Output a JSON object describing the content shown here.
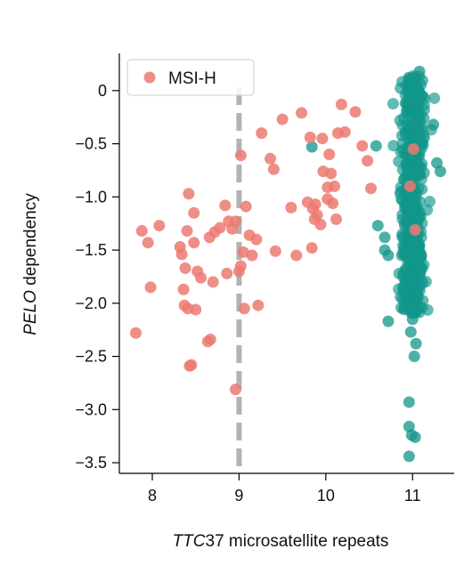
{
  "chart_data": {
    "type": "scatter",
    "title": "",
    "xlabel_italic": "TTC",
    "xlabel_rest": "37 microsatellite repeats",
    "ylabel_italic": "PELO",
    "ylabel_rest": " dependency",
    "xlim": [
      7.62,
      11.48
    ],
    "ylim": [
      -3.6,
      0.35
    ],
    "xticks": [
      8,
      9,
      10,
      11
    ],
    "xtick_labels": [
      "8",
      "9",
      "10",
      "11"
    ],
    "yticks": [
      0,
      -0.5,
      -1.0,
      -1.5,
      -2.0,
      -2.5,
      -3.0,
      -3.5
    ],
    "ytick_labels": [
      "0",
      "−0.5",
      "−1.0",
      "−1.5",
      "−2.0",
      "−2.5",
      "−3.0",
      "−3.5"
    ],
    "reference_line": {
      "x": 9,
      "style": "dashed",
      "color": "#b3b3b3"
    },
    "legend": {
      "entries": [
        "MSI-H"
      ],
      "position": "top-left"
    },
    "colors": {
      "msi": "#ec7a71",
      "mss": "#11968a"
    },
    "series": [
      {
        "name": "MSI-H",
        "color": "#ec7a71",
        "points": [
          [
            7.81,
            -2.28
          ],
          [
            7.88,
            -1.32
          ],
          [
            7.95,
            -1.43
          ],
          [
            7.98,
            -1.85
          ],
          [
            8.08,
            -1.27
          ],
          [
            8.32,
            -1.47
          ],
          [
            8.34,
            -1.54
          ],
          [
            8.36,
            -1.87
          ],
          [
            8.37,
            -2.02
          ],
          [
            8.38,
            -1.67
          ],
          [
            8.4,
            -1.32
          ],
          [
            8.41,
            -2.05
          ],
          [
            8.42,
            -0.97
          ],
          [
            8.43,
            -2.59
          ],
          [
            8.45,
            -2.58
          ],
          [
            8.48,
            -1.15
          ],
          [
            8.48,
            -1.43
          ],
          [
            8.5,
            -2.06
          ],
          [
            8.52,
            -1.7
          ],
          [
            8.56,
            -1.76
          ],
          [
            8.64,
            -2.36
          ],
          [
            8.66,
            -1.38
          ],
          [
            8.67,
            -2.34
          ],
          [
            8.7,
            -1.8
          ],
          [
            8.72,
            -1.33
          ],
          [
            8.78,
            -1.29
          ],
          [
            8.84,
            -1.08
          ],
          [
            8.86,
            -1.72
          ],
          [
            8.88,
            -1.23
          ],
          [
            8.92,
            -1.3
          ],
          [
            8.96,
            -1.23
          ],
          [
            8.96,
            -2.81
          ],
          [
            9.02,
            -0.61
          ],
          [
            9.0,
            -1.7
          ],
          [
            9.02,
            -1.65
          ],
          [
            9.05,
            -1.52
          ],
          [
            9.06,
            -2.05
          ],
          [
            9.08,
            -1.09
          ],
          [
            9.12,
            -1.36
          ],
          [
            9.15,
            -1.55
          ],
          [
            9.2,
            -1.4
          ],
          [
            9.22,
            -2.02
          ],
          [
            9.26,
            -0.4
          ],
          [
            9.36,
            -0.64
          ],
          [
            9.4,
            -0.74
          ],
          [
            9.42,
            -1.51
          ],
          [
            9.5,
            -0.27
          ],
          [
            9.6,
            -1.1
          ],
          [
            9.66,
            -1.55
          ],
          [
            9.72,
            -0.21
          ],
          [
            9.79,
            -1.05
          ],
          [
            9.82,
            -0.44
          ],
          [
            9.84,
            -1.48
          ],
          [
            9.85,
            -1.11
          ],
          [
            9.87,
            -1.21
          ],
          [
            9.88,
            -1.07
          ],
          [
            9.9,
            -1.17
          ],
          [
            9.94,
            -1.26
          ],
          [
            9.96,
            -0.45
          ],
          [
            9.97,
            -0.76
          ],
          [
            10.02,
            -0.91
          ],
          [
            10.02,
            -1.02
          ],
          [
            10.04,
            -0.6
          ],
          [
            10.06,
            -0.78
          ],
          [
            10.08,
            -1.06
          ],
          [
            10.1,
            -0.9
          ],
          [
            10.12,
            -1.21
          ],
          [
            10.14,
            -0.4
          ],
          [
            10.18,
            -0.13
          ],
          [
            10.22,
            -0.39
          ],
          [
            10.34,
            -0.2
          ],
          [
            10.42,
            -0.52
          ],
          [
            10.48,
            -0.66
          ],
          [
            10.52,
            -0.92
          ],
          [
            11.01,
            -0.55
          ],
          [
            10.97,
            -0.9
          ],
          [
            11.03,
            -1.31
          ]
        ]
      },
      {
        "name": "",
        "color": "#11968a",
        "points": [
          [
            9.84,
            -0.53
          ],
          [
            10.58,
            -0.52
          ],
          [
            10.6,
            -1.27
          ],
          [
            10.68,
            -1.38
          ],
          [
            10.68,
            -1.5
          ],
          [
            10.72,
            -2.17
          ],
          [
            10.72,
            -1.55
          ],
          [
            11.28,
            -0.68
          ],
          [
            11.32,
            -0.76
          ],
          [
            11.24,
            -0.32
          ],
          [
            10.96,
            -2.93
          ],
          [
            10.96,
            -3.16
          ],
          [
            10.99,
            -3.24
          ],
          [
            11.03,
            -3.26
          ],
          [
            10.96,
            -3.44
          ],
          [
            11.02,
            -2.5
          ],
          [
            11.04,
            -2.38
          ],
          [
            10.98,
            -2.27
          ],
          [
            11.0,
            -2.15
          ],
          [
            11.08,
            0.18
          ],
          [
            11.04,
            0.12
          ],
          [
            10.96,
            0.1
          ],
          [
            10.93,
            -0.12
          ],
          [
            11.1,
            -0.05
          ]
        ],
        "cluster": {
          "x_center": 11.0,
          "x_spread": 0.12,
          "y_top": 0.15,
          "y_bottom": -2.1,
          "count": 520
        }
      }
    ]
  }
}
